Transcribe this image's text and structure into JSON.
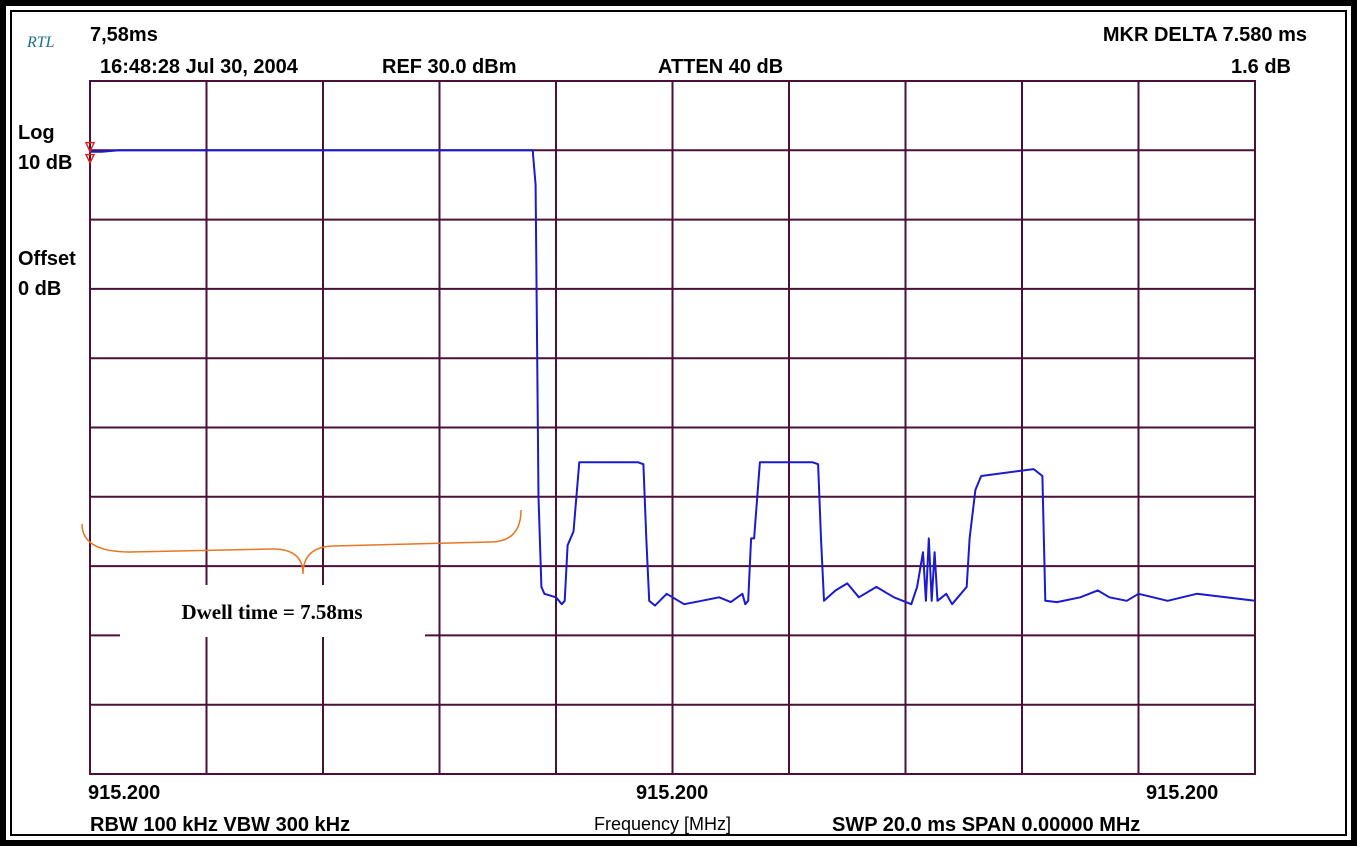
{
  "header": {
    "logo": "RTL",
    "marker_time": "7,58ms",
    "timestamp": "16:48:28 Jul 30, 2004",
    "ref": "REF 30.0 dBm",
    "atten": "ATTEN 40 dB",
    "mkr_delta": "MKR DELTA 7.580 ms",
    "mkr_db": "1.6 dB"
  },
  "left_panel": {
    "scale_mode": "Log",
    "scale_div": "10 dB",
    "offset_label": "Offset",
    "offset_value": "0 dB"
  },
  "footer": {
    "start_freq": "915.200",
    "center_freq": "915.200",
    "stop_freq": "915.200",
    "bandwidth": "RBW 100 kHz  VBW 300 kHz",
    "axis_label": "Frequency [MHz]",
    "sweep_span": "SWP 20.0 ms  SPAN 0.00000 MHz"
  },
  "annotation": {
    "text": "Dwell time = 7.58ms"
  },
  "colors": {
    "grid": "#4a1038",
    "trace": "#1a1ad0",
    "brace": "#e87722",
    "marker": "#e02020"
  },
  "chart_data": {
    "type": "line",
    "x_unit": "ms",
    "y_unit": "dBm",
    "xlim": [
      0,
      20
    ],
    "ylim": [
      -70,
      30
    ],
    "grid": true,
    "marker_delta_ms": 7.58,
    "marker_delta_db": 1.6,
    "series": [
      {
        "points": [
          [
            0,
            19.8
          ],
          [
            0.2,
            19.8
          ],
          [
            0.5,
            20.0
          ],
          [
            1.0,
            20.0
          ],
          [
            4.0,
            20.0
          ],
          [
            7.6,
            20.0
          ],
          [
            7.65,
            15.0
          ],
          [
            7.7,
            -30.0
          ],
          [
            7.75,
            -43.0
          ],
          [
            7.8,
            -44.0
          ],
          [
            8.0,
            -44.5
          ],
          [
            8.1,
            -45.5
          ],
          [
            8.15,
            -45.0
          ],
          [
            8.2,
            -37.0
          ],
          [
            8.3,
            -35.0
          ],
          [
            8.4,
            -25.0
          ],
          [
            9.4,
            -25.0
          ],
          [
            9.5,
            -25.3
          ],
          [
            9.55,
            -36.0
          ],
          [
            9.6,
            -45.0
          ],
          [
            9.7,
            -45.7
          ],
          [
            9.9,
            -44.0
          ],
          [
            10.2,
            -45.5
          ],
          [
            10.5,
            -45.0
          ],
          [
            10.8,
            -44.5
          ],
          [
            11.0,
            -45.2
          ],
          [
            11.2,
            -44.0
          ],
          [
            11.25,
            -45.5
          ],
          [
            11.3,
            -45.0
          ],
          [
            11.35,
            -36.0
          ],
          [
            11.4,
            -36.0
          ],
          [
            11.5,
            -25.0
          ],
          [
            12.4,
            -25.0
          ],
          [
            12.5,
            -25.3
          ],
          [
            12.55,
            -36.0
          ],
          [
            12.6,
            -45.0
          ],
          [
            12.8,
            -43.5
          ],
          [
            13.0,
            -42.5
          ],
          [
            13.2,
            -44.5
          ],
          [
            13.5,
            -43.0
          ],
          [
            13.8,
            -44.5
          ],
          [
            14.1,
            -45.5
          ],
          [
            14.2,
            -43.0
          ],
          [
            14.3,
            -38.0
          ],
          [
            14.35,
            -45.0
          ],
          [
            14.4,
            -36.0
          ],
          [
            14.45,
            -45.0
          ],
          [
            14.5,
            -38.0
          ],
          [
            14.55,
            -45.0
          ],
          [
            14.7,
            -44.0
          ],
          [
            14.8,
            -45.5
          ],
          [
            14.9,
            -44.5
          ],
          [
            15.05,
            -43.0
          ],
          [
            15.1,
            -36.0
          ],
          [
            15.2,
            -29.0
          ],
          [
            15.3,
            -27.0
          ],
          [
            16.2,
            -26.0
          ],
          [
            16.35,
            -27.0
          ],
          [
            16.4,
            -45.0
          ],
          [
            16.6,
            -45.2
          ],
          [
            17.0,
            -44.5
          ],
          [
            17.3,
            -43.5
          ],
          [
            17.5,
            -44.5
          ],
          [
            17.8,
            -45.0
          ],
          [
            18.0,
            -44.0
          ],
          [
            18.5,
            -45.0
          ],
          [
            19.0,
            -44.0
          ],
          [
            19.5,
            -44.5
          ],
          [
            20.0,
            -45.0
          ]
        ]
      }
    ]
  }
}
